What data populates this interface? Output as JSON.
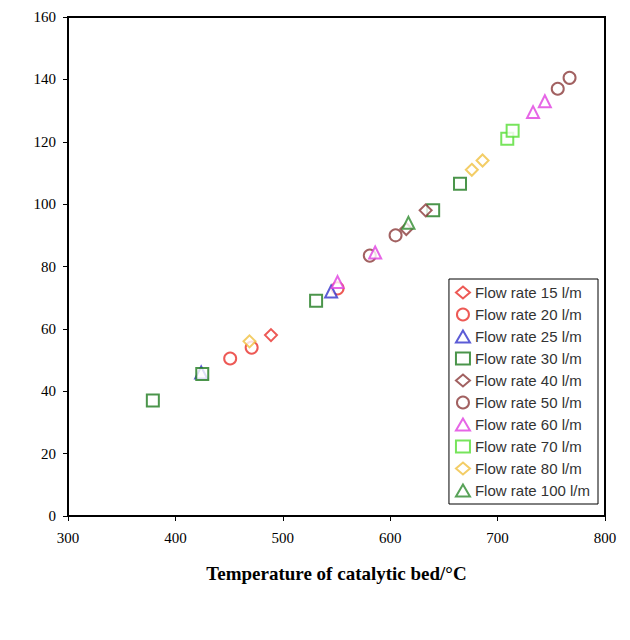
{
  "chart_data": {
    "type": "scatter",
    "x_label": "Temperature of catalytic bed/°C",
    "xlim": [
      300,
      800
    ],
    "xticks": [
      300,
      400,
      500,
      600,
      700,
      800
    ],
    "ylim": [
      0,
      160
    ],
    "yticks": [
      0,
      20,
      40,
      60,
      80,
      100,
      120,
      140,
      160
    ],
    "grid": false,
    "legend": "lower right",
    "series": [
      {
        "name": "Flow rate 15 l/m",
        "color": "#e8302a",
        "marker": "diamond",
        "x": [
          489
        ],
        "values": [
          58
        ]
      },
      {
        "name": "Flow rate 20 l/m",
        "color": "#e8302a",
        "marker": "circle",
        "x": [
          451,
          471,
          551
        ],
        "values": [
          50.5,
          54,
          73
        ]
      },
      {
        "name": "Flow rate 25 l/m",
        "color": "#3333cc",
        "marker": "triangle",
        "x": [
          424,
          545
        ],
        "values": [
          46,
          72
        ]
      },
      {
        "name": "Flow rate 30 l/m",
        "color": "#1e7a1e",
        "marker": "square",
        "x": [
          379,
          425,
          531,
          640,
          665
        ],
        "values": [
          37,
          45.5,
          69,
          98,
          106.5
        ]
      },
      {
        "name": "Flow rate 40 l/m",
        "color": "#8b3a3a",
        "marker": "diamond",
        "x": [
          615,
          633
        ],
        "values": [
          92,
          98
        ]
      },
      {
        "name": "Flow rate 50 l/m",
        "color": "#8b3a3a",
        "marker": "circle",
        "x": [
          581,
          605,
          756,
          767
        ],
        "values": [
          83.5,
          90,
          137,
          140.5
        ]
      },
      {
        "name": "Flow rate 60 l/m",
        "color": "#e040e0",
        "marker": "triangle",
        "x": [
          551,
          586,
          733,
          744
        ],
        "values": [
          75,
          84.5,
          129.5,
          133
        ]
      },
      {
        "name": "Flow rate 70 l/m",
        "color": "#55dd33",
        "marker": "square",
        "x": [
          709,
          714
        ],
        "values": [
          121,
          123.5
        ]
      },
      {
        "name": "Flow rate 80 l/m",
        "color": "#f0c040",
        "marker": "diamond",
        "x": [
          469,
          676,
          686
        ],
        "values": [
          56,
          111,
          114
        ]
      },
      {
        "name": "Flow rate 100 l/m",
        "color": "#2e8b2e",
        "marker": "triangle",
        "x": [
          617
        ],
        "values": [
          94
        ]
      }
    ]
  }
}
